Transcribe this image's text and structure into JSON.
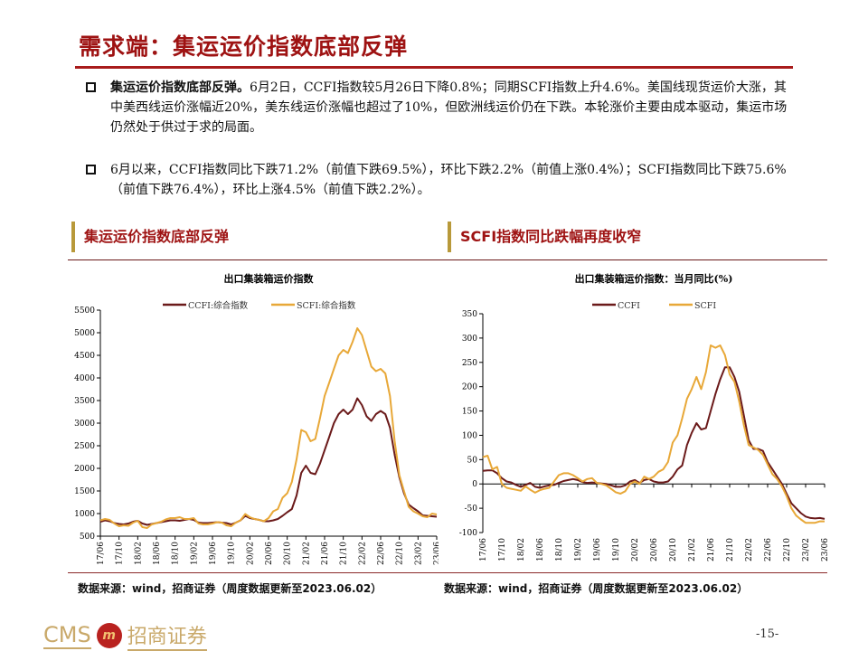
{
  "header": {
    "title": "需求端：集运运价指数底部反弹"
  },
  "bullets": [
    {
      "bold": "集运运价指数底部反弹。",
      "text": "6月2日，CCFI指数较5月26日下降0.8%；同期SCFI指数上升4.6%。美国线现货运价大涨，其中美西线运价涨幅近20%，美东线运价涨幅也超过了10%，但欧洲线运价仍在下跌。本轮涨价主要由成本驱动，集运市场仍然处于供过于求的局面。"
    },
    {
      "bold": "",
      "text": "6月以来，CCFI指数同比下跌71.2%（前值下跌69.5%），环比下跌2.2%（前值上涨0.4%）；SCFI指数同比下跌75.6%（前值下跌76.4%），环比上涨4.5%（前值下跌2.2%）。"
    }
  ],
  "sections": {
    "left": "集运运价指数底部反弹",
    "right": "SCFI指数同比跌幅再度收窄"
  },
  "colors": {
    "title": "#9e1212",
    "ccfi": "#6b1a1a",
    "scfi": "#e8a838"
  },
  "chart_data": [
    {
      "type": "line",
      "title": "出口集装箱运价指数",
      "xlabel": "",
      "ylabel": "",
      "ylim": [
        500,
        5500
      ],
      "yticks": [
        500,
        1000,
        1500,
        2000,
        2500,
        3000,
        3500,
        4000,
        4500,
        5000,
        5500
      ],
      "xticks": [
        "17/06",
        "17/10",
        "18/02",
        "18/06",
        "18/10",
        "19/02",
        "19/06",
        "19/10",
        "20/02",
        "20/06",
        "20/10",
        "21/02",
        "21/06",
        "21/10",
        "22/02",
        "22/06",
        "22/10",
        "23/02",
        "23/06"
      ],
      "x_range": [
        "2017-06",
        "2023-06"
      ],
      "legend": "top",
      "series": [
        {
          "name": "CCFI:综合指数",
          "color": "#6b1a1a",
          "values": [
            820,
            850,
            830,
            790,
            770,
            760,
            780,
            820,
            840,
            780,
            750,
            770,
            790,
            810,
            830,
            850,
            850,
            840,
            860,
            880,
            860,
            800,
            790,
            790,
            800,
            810,
            800,
            790,
            760,
            800,
            850,
            950,
            900,
            880,
            860,
            830,
            830,
            850,
            880,
            950,
            1030,
            1100,
            1400,
            1900,
            2060,
            1900,
            1870,
            2100,
            2400,
            2700,
            3000,
            3200,
            3300,
            3200,
            3300,
            3550,
            3400,
            3150,
            3050,
            3200,
            3270,
            3200,
            2900,
            2300,
            1800,
            1450,
            1200,
            1120,
            1050,
            960,
            950,
            940,
            930
          ]
        },
        {
          "name": "SCFI:综合指数",
          "color": "#e8a838",
          "values": [
            850,
            880,
            860,
            780,
            720,
            740,
            730,
            800,
            840,
            700,
            680,
            760,
            790,
            820,
            870,
            900,
            900,
            920,
            880,
            880,
            900,
            780,
            760,
            760,
            780,
            810,
            800,
            740,
            720,
            800,
            850,
            990,
            920,
            880,
            860,
            830,
            900,
            1050,
            1100,
            1350,
            1450,
            1700,
            2200,
            2850,
            2800,
            2600,
            2650,
            3100,
            3600,
            3900,
            4200,
            4500,
            4620,
            4550,
            4800,
            5100,
            4950,
            4600,
            4250,
            4150,
            4200,
            4100,
            3600,
            2600,
            1850,
            1500,
            1150,
            1050,
            1000,
            940,
            920,
            1000,
            980
          ]
        }
      ],
      "source": "数据来源：wind，招商证券（周度数据更新至2023.06.02）"
    },
    {
      "type": "line",
      "title": "出口集装箱运价指数：当月同比(%)",
      "xlabel": "",
      "ylabel": "",
      "ylim": [
        -100,
        350
      ],
      "yticks": [
        -100,
        -50,
        0,
        50,
        100,
        150,
        200,
        250,
        300,
        350
      ],
      "xticks": [
        "17/06",
        "17/10",
        "18/02",
        "18/06",
        "18/10",
        "19/02",
        "19/06",
        "19/10",
        "20/02",
        "20/06",
        "20/10",
        "21/02",
        "21/06",
        "21/10",
        "22/02",
        "22/06",
        "22/10",
        "23/02",
        "23/06"
      ],
      "x_range": [
        "2017-06",
        "2023-06"
      ],
      "legend": "top",
      "series": [
        {
          "name": "CCFI",
          "color": "#6b1a1a",
          "values": [
            27,
            28,
            28,
            22,
            12,
            5,
            3,
            -2,
            -6,
            -2,
            2,
            -6,
            -8,
            -5,
            -3,
            -2,
            2,
            6,
            8,
            10,
            8,
            4,
            2,
            3,
            2,
            1,
            0,
            -3,
            -6,
            -6,
            -3,
            5,
            8,
            2,
            8,
            10,
            5,
            3,
            3,
            5,
            15,
            30,
            38,
            80,
            105,
            125,
            112,
            115,
            150,
            185,
            215,
            240,
            240,
            220,
            190,
            140,
            90,
            72,
            72,
            68,
            45,
            30,
            15,
            0,
            -20,
            -40,
            -50,
            -60,
            -67,
            -70,
            -71,
            -70,
            -72
          ]
        },
        {
          "name": "SCFI",
          "color": "#e8a838",
          "values": [
            55,
            58,
            30,
            35,
            0,
            -8,
            -10,
            -12,
            -14,
            -5,
            -12,
            -18,
            -13,
            -10,
            -8,
            5,
            18,
            22,
            22,
            18,
            12,
            5,
            10,
            12,
            2,
            0,
            -3,
            -10,
            -17,
            -20,
            -15,
            0,
            5,
            0,
            15,
            10,
            15,
            25,
            30,
            45,
            85,
            100,
            135,
            175,
            195,
            220,
            195,
            230,
            285,
            280,
            285,
            265,
            225,
            210,
            170,
            120,
            80,
            75,
            70,
            60,
            40,
            20,
            10,
            -5,
            -25,
            -50,
            -65,
            -73,
            -80,
            -80,
            -80,
            -77,
            -77
          ]
        }
      ],
      "source": "数据来源：wind，招商证券（周度数据更新至2023.06.02）"
    }
  ],
  "footer": {
    "logo_en": "CMS",
    "logo_cn": "招商证券",
    "page": "-15-"
  }
}
